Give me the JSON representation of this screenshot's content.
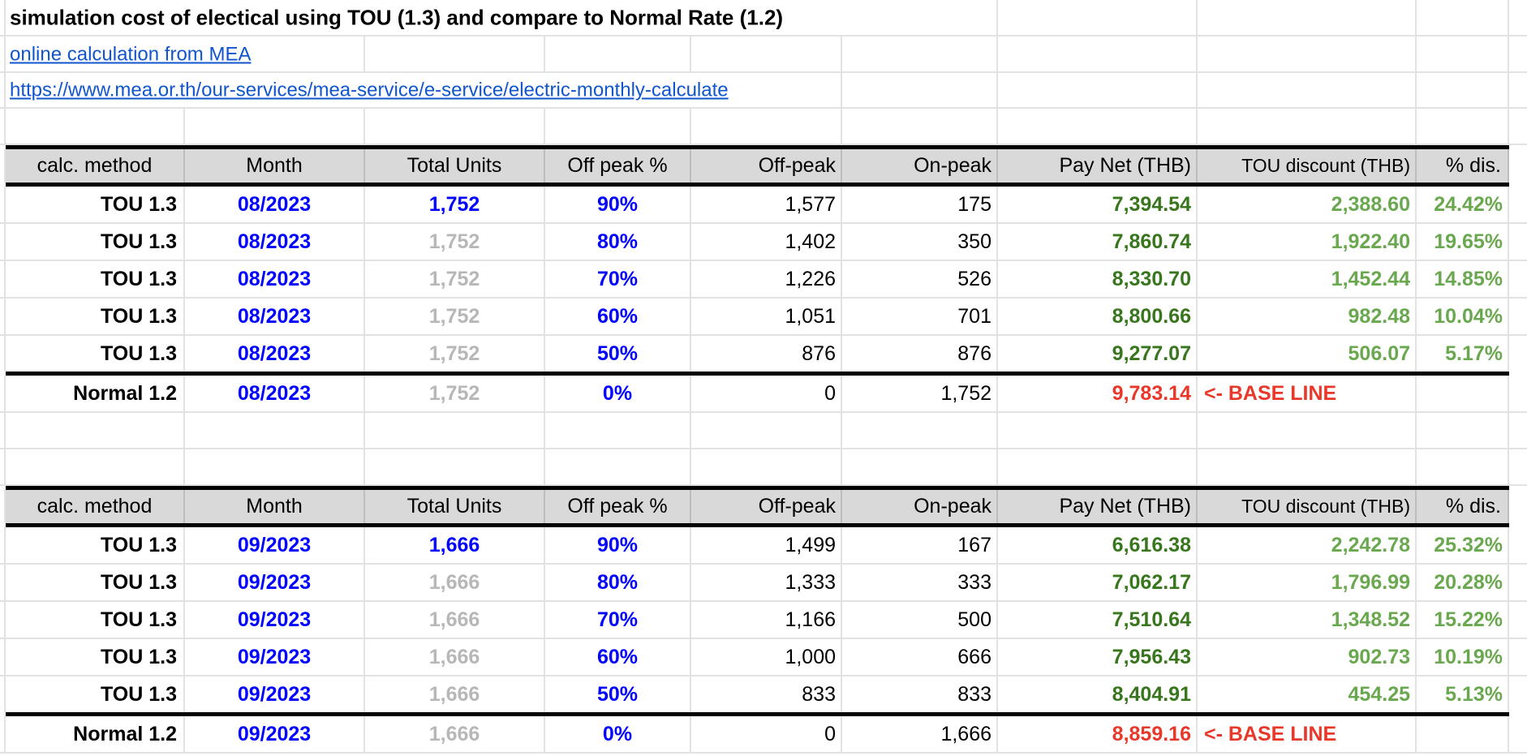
{
  "header": {
    "title": "simulation cost of electical using TOU (1.3) and compare to Normal Rate (1.2)",
    "link_label": "online calculation from MEA",
    "link_url_text": "https://www.mea.or.th/our-services/mea-service/e-service/electric-monthly-calculate"
  },
  "table_headers": [
    "calc. method",
    "Month",
    "Total Units",
    "Off peak %",
    "Off-peak",
    "On-peak",
    "Pay Net (THB)",
    "TOU discount (THB)",
    "% dis."
  ],
  "tables": [
    {
      "month_label": "08/2023",
      "rows": [
        {
          "method": "TOU 1.3",
          "month": "08/2023",
          "total_units": "1,752",
          "total_units_emphasis": "blue",
          "off_peak_pct": "90%",
          "off_peak": "1,577",
          "on_peak": "175",
          "pay_net": "7,394.54",
          "tou_discount": "2,388.60",
          "pct_discount": "24.42%",
          "variant": "tou"
        },
        {
          "method": "TOU 1.3",
          "month": "08/2023",
          "total_units": "1,752",
          "total_units_emphasis": "gray",
          "off_peak_pct": "80%",
          "off_peak": "1,402",
          "on_peak": "350",
          "pay_net": "7,860.74",
          "tou_discount": "1,922.40",
          "pct_discount": "19.65%",
          "variant": "tou"
        },
        {
          "method": "TOU 1.3",
          "month": "08/2023",
          "total_units": "1,752",
          "total_units_emphasis": "gray",
          "off_peak_pct": "70%",
          "off_peak": "1,226",
          "on_peak": "526",
          "pay_net": "8,330.70",
          "tou_discount": "1,452.44",
          "pct_discount": "14.85%",
          "variant": "tou"
        },
        {
          "method": "TOU 1.3",
          "month": "08/2023",
          "total_units": "1,752",
          "total_units_emphasis": "gray",
          "off_peak_pct": "60%",
          "off_peak": "1,051",
          "on_peak": "701",
          "pay_net": "8,800.66",
          "tou_discount": "982.48",
          "pct_discount": "10.04%",
          "variant": "tou"
        },
        {
          "method": "TOU 1.3",
          "month": "08/2023",
          "total_units": "1,752",
          "total_units_emphasis": "gray",
          "off_peak_pct": "50%",
          "off_peak": "876",
          "on_peak": "876",
          "pay_net": "9,277.07",
          "tou_discount": "506.07",
          "pct_discount": "5.17%",
          "variant": "tou"
        },
        {
          "method": "Normal 1.2",
          "month": "08/2023",
          "total_units": "1,752",
          "total_units_emphasis": "gray",
          "off_peak_pct": "0%",
          "off_peak": "0",
          "on_peak": "1,752",
          "pay_net": "9,783.14",
          "tou_discount": "<- BASE LINE",
          "pct_discount": "",
          "variant": "normal"
        }
      ]
    },
    {
      "month_label": "09/2023",
      "rows": [
        {
          "method": "TOU 1.3",
          "month": "09/2023",
          "total_units": "1,666",
          "total_units_emphasis": "blue",
          "off_peak_pct": "90%",
          "off_peak": "1,499",
          "on_peak": "167",
          "pay_net": "6,616.38",
          "tou_discount": "2,242.78",
          "pct_discount": "25.32%",
          "variant": "tou"
        },
        {
          "method": "TOU 1.3",
          "month": "09/2023",
          "total_units": "1,666",
          "total_units_emphasis": "gray",
          "off_peak_pct": "80%",
          "off_peak": "1,333",
          "on_peak": "333",
          "pay_net": "7,062.17",
          "tou_discount": "1,796.99",
          "pct_discount": "20.28%",
          "variant": "tou"
        },
        {
          "method": "TOU 1.3",
          "month": "09/2023",
          "total_units": "1,666",
          "total_units_emphasis": "gray",
          "off_peak_pct": "70%",
          "off_peak": "1,166",
          "on_peak": "500",
          "pay_net": "7,510.64",
          "tou_discount": "1,348.52",
          "pct_discount": "15.22%",
          "variant": "tou"
        },
        {
          "method": "TOU 1.3",
          "month": "09/2023",
          "total_units": "1,666",
          "total_units_emphasis": "gray",
          "off_peak_pct": "60%",
          "off_peak": "1,000",
          "on_peak": "666",
          "pay_net": "7,956.43",
          "tou_discount": "902.73",
          "pct_discount": "10.19%",
          "variant": "tou"
        },
        {
          "method": "TOU 1.3",
          "month": "09/2023",
          "total_units": "1,666",
          "total_units_emphasis": "gray",
          "off_peak_pct": "50%",
          "off_peak": "833",
          "on_peak": "833",
          "pay_net": "8,404.91",
          "tou_discount": "454.25",
          "pct_discount": "5.13%",
          "variant": "tou"
        },
        {
          "method": "Normal 1.2",
          "month": "09/2023",
          "total_units": "1,666",
          "total_units_emphasis": "gray",
          "off_peak_pct": "0%",
          "off_peak": "0",
          "on_peak": "1,666",
          "pay_net": "8,859.16",
          "tou_discount": "<- BASE LINE",
          "pct_discount": "",
          "variant": "normal"
        }
      ]
    }
  ],
  "colors": {
    "value_blue": "#0000ff",
    "link_blue": "#1155cc",
    "muted_gray": "#b7b7b7",
    "pay_net_green": "#38761d",
    "discount_green": "#6aa84f",
    "baseline_red": "#e8382a"
  }
}
